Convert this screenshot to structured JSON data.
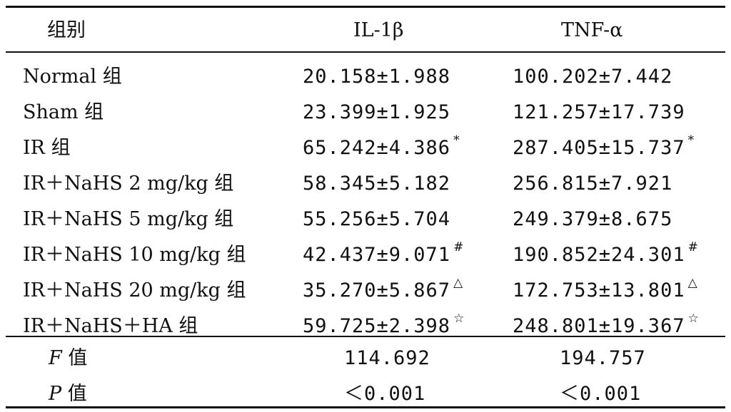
{
  "table": {
    "headers": {
      "group": "组别",
      "il1b": "IL-1β",
      "tnfa": "TNF-α"
    },
    "rows": [
      {
        "group": "Normal 组",
        "il1b": "20.158±1.988",
        "il1b_mark": "",
        "tnfa": "100.202±7.442",
        "tnfa_mark": ""
      },
      {
        "group": "Sham 组",
        "il1b": "23.399±1.925",
        "il1b_mark": "",
        "tnfa": "121.257±17.739",
        "tnfa_mark": ""
      },
      {
        "group": "IR 组",
        "il1b": "65.242±4.386",
        "il1b_mark": "*",
        "tnfa": "287.405±15.737",
        "tnfa_mark": "*"
      },
      {
        "group": "IR＋NaHS 2 mg/kg 组",
        "il1b": "58.345±5.182",
        "il1b_mark": "",
        "tnfa": "256.815±7.921",
        "tnfa_mark": ""
      },
      {
        "group": "IR＋NaHS 5 mg/kg 组",
        "il1b": "55.256±5.704",
        "il1b_mark": "",
        "tnfa": "249.379±8.675",
        "tnfa_mark": ""
      },
      {
        "group": "IR＋NaHS 10 mg/kg 组",
        "il1b": "42.437±9.071",
        "il1b_mark": "#",
        "tnfa": "190.852±24.301",
        "tnfa_mark": "#"
      },
      {
        "group": "IR＋NaHS 20 mg/kg 组",
        "il1b": "35.270±5.867",
        "il1b_mark": "△",
        "tnfa": "172.753±13.801",
        "tnfa_mark": "△"
      },
      {
        "group": "IR＋NaHS＋HA 组",
        "il1b": "59.725±2.398",
        "il1b_mark": "☆",
        "tnfa": "248.801±19.367",
        "tnfa_mark": "☆"
      }
    ],
    "stats": [
      {
        "symbol": "F",
        "suffix": "值",
        "il1b": "114.692",
        "tnfa": "194.757"
      },
      {
        "symbol": "P",
        "suffix": "值",
        "il1b": "＜0.001",
        "tnfa": "＜0.001"
      }
    ]
  }
}
